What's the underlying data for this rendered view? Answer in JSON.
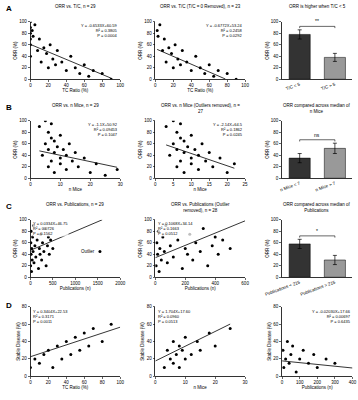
{
  "chart_data": [
    {
      "type": "scatter",
      "panel_label": "A",
      "title": "ORR vs. T/C, n = 29",
      "x_label": "TC Ratio (%)",
      "y_label": "ORR (%)",
      "x": [
        0,
        0,
        0,
        0,
        0,
        0,
        2,
        3,
        5,
        8,
        10,
        12,
        15,
        18,
        20,
        22,
        25,
        28,
        30,
        35,
        40,
        45,
        50,
        55,
        60,
        65,
        70,
        80,
        90
      ],
      "values": [
        100,
        90,
        80,
        70,
        60,
        40,
        85,
        75,
        95,
        50,
        70,
        30,
        55,
        45,
        20,
        60,
        35,
        25,
        50,
        30,
        15,
        40,
        20,
        10,
        25,
        5,
        15,
        10,
        0
      ],
      "fit": {
        "x": [
          0,
          90
        ],
        "values": [
          60.6,
          1.8
        ]
      },
      "stats": [
        "Y = -0.6533X+60.59",
        "R² = 0.3805",
        "P = 0.0004"
      ],
      "xlim": [
        0,
        100
      ],
      "xticks": [
        0,
        20,
        40,
        60,
        80,
        100
      ],
      "ylim": [
        0,
        100
      ],
      "yticks": [
        0,
        20,
        40,
        60,
        80,
        100
      ],
      "color": "#000000",
      "marker": "circle",
      "grid": false
    },
    {
      "type": "scatter",
      "title": "ORR vs. T/C (T/C = 0 Removed), n = 23",
      "x_label": "TC Ratio (%)",
      "y_label": "ORR (%)",
      "x": [
        2,
        3,
        5,
        8,
        10,
        12,
        15,
        18,
        20,
        22,
        25,
        28,
        30,
        35,
        40,
        45,
        50,
        55,
        60,
        65,
        70,
        80,
        90
      ],
      "values": [
        85,
        75,
        95,
        50,
        70,
        30,
        55,
        45,
        20,
        60,
        35,
        25,
        50,
        30,
        15,
        40,
        20,
        10,
        25,
        5,
        15,
        10,
        0
      ],
      "fit": {
        "x": [
          2,
          78
        ],
        "values": [
          51.9,
          0.4
        ]
      },
      "stats": [
        "Y = -0.6772X+53.24",
        "R² = 0.2458",
        "P = 0.0292"
      ],
      "xlim": [
        0,
        100
      ],
      "xticks": [
        0,
        20,
        40,
        60,
        80,
        100
      ],
      "ylim": [
        0,
        100
      ],
      "yticks": [
        0,
        20,
        40,
        60,
        80,
        100
      ],
      "color": "#000000",
      "marker": "circle",
      "grid": false
    },
    {
      "type": "bar",
      "title": "ORR is higher when T/C < 5",
      "y_label": "ORR (%)",
      "categories": [
        "T/C < 5",
        "T/C > 5"
      ],
      "values": [
        78,
        38
      ],
      "errors": [
        8,
        7
      ],
      "colors": [
        "#333333",
        "#999999"
      ],
      "significance": "**",
      "ylim": [
        0,
        100
      ],
      "yticks": [
        0,
        20,
        40,
        60,
        80,
        100
      ],
      "grid": false
    },
    {
      "type": "scatter",
      "panel_label": "B",
      "title": "ORR vs. n Mice, n = 29",
      "x_label": "n Mice",
      "y_label": "ORR (%)",
      "x": [
        3,
        4,
        5,
        5,
        6,
        6,
        6,
        7,
        7,
        7,
        8,
        8,
        8,
        9,
        10,
        10,
        10,
        11,
        12,
        12,
        13,
        14,
        15,
        16,
        18,
        20,
        22,
        25,
        29
      ],
      "values": [
        90,
        40,
        100,
        60,
        80,
        20,
        50,
        70,
        30,
        95,
        45,
        65,
        10,
        55,
        35,
        75,
        25,
        50,
        40,
        15,
        60,
        30,
        45,
        20,
        35,
        10,
        25,
        5,
        15
      ],
      "fit": {
        "x": [
          3,
          29
        ],
        "values": [
          47.6,
          19
        ]
      },
      "stats": [
        "Y = -1.1X+50.92",
        "R² = 0.09453",
        "P = 0.1047"
      ],
      "xlim": [
        0,
        30
      ],
      "xticks": [
        0,
        10,
        20,
        30
      ],
      "ylim": [
        0,
        100
      ],
      "yticks": [
        0,
        20,
        40,
        60,
        80,
        100
      ],
      "color": "#000000",
      "marker": "circle",
      "grid": false
    },
    {
      "type": "scatter",
      "title": "ORR vs. n Mice (Outliers removed), n = 27",
      "x_label": "n Mice",
      "y_label": "ORR (%)",
      "x": [
        3,
        4,
        5,
        5,
        6,
        6,
        6,
        7,
        7,
        7,
        8,
        8,
        8,
        9,
        10,
        10,
        10,
        11,
        12,
        12,
        13,
        14,
        15,
        16,
        18,
        20,
        22
      ],
      "values": [
        90,
        40,
        100,
        60,
        80,
        20,
        50,
        70,
        30,
        95,
        45,
        65,
        10,
        55,
        35,
        75,
        25,
        50,
        40,
        15,
        60,
        30,
        45,
        20,
        35,
        10,
        25
      ],
      "fit": {
        "x": [
          3,
          22
        ],
        "values": [
          58,
          17.4
        ]
      },
      "stats": [
        "Y = -2.14X+64.5",
        "R² = 0.1862",
        "P = 0.0245"
      ],
      "xlim": [
        0,
        25
      ],
      "xticks": [
        0,
        5,
        10,
        15,
        20,
        25
      ],
      "ylim": [
        0,
        100
      ],
      "yticks": [
        0,
        20,
        40,
        60,
        80,
        100
      ],
      "color": "#000000",
      "marker": "circle",
      "grid": false
    },
    {
      "type": "bar",
      "title": "ORR compared across median of n Mice",
      "y_label": "ORR (%)",
      "categories": [
        "n Mice < 7",
        "n Mice > 7"
      ],
      "values": [
        35,
        52
      ],
      "errors": [
        8,
        9
      ],
      "colors": [
        "#333333",
        "#999999"
      ],
      "significance": "ns",
      "ylim": [
        0,
        100
      ],
      "yticks": [
        0,
        20,
        40,
        60,
        80,
        100
      ],
      "grid": false
    },
    {
      "type": "scatter",
      "panel_label": "C",
      "title": "ORR vs. Publications, n = 29",
      "x_label": "Publications (n)",
      "y_label": "ORR (%)",
      "x": [
        5,
        10,
        15,
        20,
        25,
        30,
        40,
        50,
        60,
        70,
        80,
        100,
        120,
        150,
        180,
        200,
        215,
        230,
        250,
        270,
        300,
        320,
        350,
        380,
        400,
        420,
        450,
        500,
        1550
      ],
      "values": [
        20,
        60,
        40,
        80,
        10,
        50,
        30,
        70,
        45,
        90,
        25,
        55,
        35,
        65,
        15,
        50,
        40,
        75,
        30,
        60,
        45,
        85,
        20,
        55,
        70,
        40,
        65,
        50,
        45
      ],
      "fit": {
        "x": [
          0,
          1600
        ],
        "values": [
          46.8,
          100
        ]
      },
      "stats": [
        "Y = 0.0334X+46.75",
        "R² = 0.0726",
        "P = 0.1562"
      ],
      "annotations": [
        {
          "text": "Outlier",
          "x": 1550,
          "y": 45
        }
      ],
      "xlim": [
        0,
        2000
      ],
      "xticks": [
        0,
        500,
        1000,
        1500,
        2000
      ],
      "ylim": [
        0,
        100
      ],
      "yticks": [
        0,
        20,
        40,
        60,
        80,
        100
      ],
      "color": "#000000",
      "marker": "circle",
      "grid": false
    },
    {
      "type": "scatter",
      "title": "ORR vs. Publications (Outlier removed), n = 28",
      "x_label": "Publications (n)",
      "y_label": "ORR (%)",
      "x": [
        5,
        10,
        15,
        20,
        25,
        30,
        40,
        50,
        60,
        70,
        80,
        100,
        120,
        150,
        180,
        200,
        215,
        230,
        250,
        270,
        300,
        320,
        350,
        380,
        400,
        420,
        450,
        500
      ],
      "values": [
        20,
        60,
        40,
        80,
        10,
        50,
        30,
        70,
        45,
        90,
        25,
        55,
        35,
        65,
        15,
        50,
        40,
        75,
        30,
        60,
        45,
        85,
        20,
        55,
        70,
        40,
        65,
        50
      ],
      "fit": {
        "x": [
          0,
          600
        ],
        "values": [
          34.1,
          98.2
        ]
      },
      "stats": [
        "Y = 0.1068X+34.14",
        "R² = 0.1663",
        "P = 0.0512"
      ],
      "xlim": [
        0,
        600
      ],
      "xticks": [
        0,
        200,
        400,
        600
      ],
      "ylim": [
        0,
        100
      ],
      "yticks": [
        0,
        20,
        40,
        60,
        80,
        100
      ],
      "color": "#000000",
      "marker": "circle",
      "grid": false
    },
    {
      "type": "bar",
      "title": "ORR compared across median of Publications",
      "y_label": "ORR (%)",
      "categories": [
        "Publications < 215",
        "Publications > 215"
      ],
      "values": [
        58,
        30
      ],
      "errors": [
        8,
        8
      ],
      "colors": [
        "#333333",
        "#999999"
      ],
      "significance": "*",
      "ylim": [
        0,
        100
      ],
      "yticks": [
        0,
        20,
        40,
        60,
        80,
        100
      ],
      "grid": false
    },
    {
      "type": "scatter",
      "panel_label": "D",
      "x_label": "TC Ratio (%)",
      "y_label": "Stable Disease (%)",
      "x": [
        0,
        5,
        10,
        15,
        20,
        25,
        30,
        35,
        40,
        45,
        50,
        55,
        60,
        65,
        70,
        80,
        90
      ],
      "values": [
        10,
        20,
        15,
        25,
        30,
        10,
        35,
        20,
        40,
        25,
        45,
        30,
        50,
        35,
        55,
        40,
        60
      ],
      "fit": {
        "x": [
          0,
          100
        ],
        "values": [
          22.5,
          56.6
        ]
      },
      "stats": [
        "Y = 0.3404X+22.53",
        "R² = 0.3171",
        "P = 0.0011"
      ],
      "xlim": [
        0,
        100
      ],
      "xticks": [
        0,
        20,
        40,
        60,
        80,
        100
      ],
      "ylim": [
        0,
        80
      ],
      "yticks": [
        0,
        20,
        40,
        60,
        80
      ],
      "color": "#000000",
      "marker": "circle",
      "grid": false
    },
    {
      "type": "scatter",
      "x_label": "n Mice",
      "y_label": "Stable Disease (%)",
      "x": [
        3,
        4,
        5,
        6,
        6,
        7,
        8,
        8,
        9,
        10,
        10,
        12,
        14,
        15,
        18,
        20,
        25
      ],
      "values": [
        10,
        30,
        20,
        15,
        40,
        25,
        35,
        10,
        30,
        20,
        45,
        25,
        40,
        30,
        50,
        35,
        55
      ],
      "fit": {
        "x": [
          0,
          25
        ],
        "values": [
          17.6,
          60.2
        ]
      },
      "stats": [
        "Y = 1.704X+17.60",
        "R² = 0.0960",
        "P = 0.0513"
      ],
      "xlim": [
        0,
        30
      ],
      "xticks": [
        0,
        10,
        20,
        30
      ],
      "ylim": [
        0,
        80
      ],
      "yticks": [
        0,
        20,
        40,
        60,
        80
      ],
      "color": "#000000",
      "marker": "circle",
      "grid": false
    },
    {
      "type": "scatter",
      "x_label": "Publications (n)",
      "y_label": "Stable Disease (%)",
      "x": [
        5,
        10,
        20,
        30,
        40,
        50,
        60,
        80,
        100,
        120,
        150,
        180,
        200,
        250,
        300
      ],
      "values": [
        30,
        10,
        20,
        40,
        15,
        25,
        35,
        5,
        20,
        30,
        15,
        25,
        10,
        20,
        15
      ],
      "fit": {
        "x": [
          0,
          400
        ],
        "values": [
          17.7,
          9.5
        ]
      },
      "stats": [
        "Y = -0.02030X+17.66",
        "R² = 0.00697",
        "P = 0.6435"
      ],
      "xlim": [
        0,
        400
      ],
      "xticks": [
        0,
        100,
        200,
        300,
        400
      ],
      "ylim": [
        0,
        80
      ],
      "yticks": [
        0,
        20,
        40,
        60,
        80
      ],
      "color": "#000000",
      "marker": "circle",
      "grid": false
    }
  ]
}
